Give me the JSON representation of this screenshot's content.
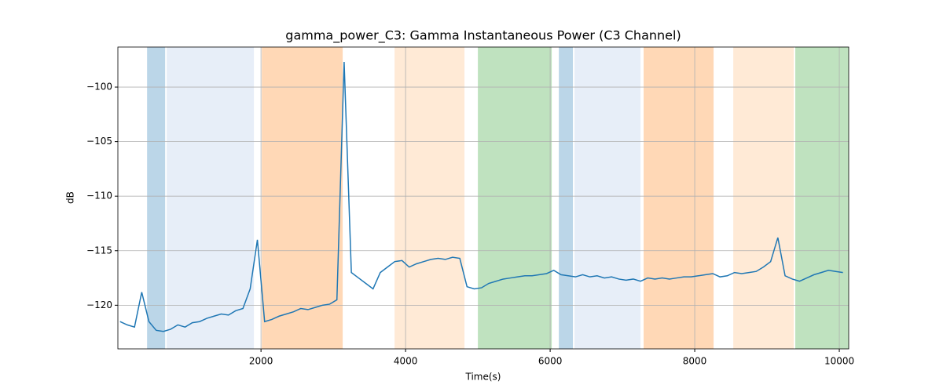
{
  "chart_data": {
    "type": "line",
    "title": "gamma_power_C3: Gamma Instantaneous Power (C3 Channel)",
    "xlabel": "Time(s)",
    "ylabel": "dB",
    "x": [
      50,
      150,
      250,
      350,
      450,
      550,
      650,
      750,
      850,
      950,
      1050,
      1150,
      1250,
      1350,
      1450,
      1550,
      1650,
      1750,
      1850,
      1950,
      2050,
      2150,
      2250,
      2350,
      2450,
      2550,
      2650,
      2750,
      2850,
      2950,
      3050,
      3150,
      3250,
      3350,
      3450,
      3550,
      3650,
      3750,
      3850,
      3950,
      4050,
      4150,
      4250,
      4350,
      4450,
      4550,
      4650,
      4750,
      4850,
      4950,
      5050,
      5150,
      5250,
      5350,
      5450,
      5550,
      5650,
      5750,
      5850,
      5950,
      6050,
      6150,
      6250,
      6350,
      6450,
      6550,
      6650,
      6750,
      6850,
      6950,
      7050,
      7150,
      7250,
      7350,
      7450,
      7550,
      7650,
      7750,
      7850,
      7950,
      8050,
      8150,
      8250,
      8350,
      8450,
      8550,
      8650,
      8750,
      8850,
      8950,
      9050,
      9150,
      9250,
      9350,
      9450,
      9550,
      9650,
      9750,
      9850,
      9950,
      10050
    ],
    "series": [
      {
        "name": "gamma_power_C3",
        "color": "#1f77b4",
        "values": [
          -121.5,
          -121.8,
          -122.0,
          -118.8,
          -121.5,
          -122.3,
          -122.4,
          -122.2,
          -121.8,
          -122.0,
          -121.6,
          -121.5,
          -121.2,
          -121.0,
          -120.8,
          -120.9,
          -120.5,
          -120.3,
          -118.5,
          -114.0,
          -121.5,
          -121.3,
          -121.0,
          -120.8,
          -120.6,
          -120.3,
          -120.4,
          -120.2,
          -120.0,
          -119.9,
          -119.5,
          -97.7,
          -117.0,
          -117.5,
          -118.0,
          -118.5,
          -117.0,
          -116.5,
          -116.0,
          -115.9,
          -116.5,
          -116.2,
          -116.0,
          -115.8,
          -115.7,
          -115.8,
          -115.6,
          -115.7,
          -118.3,
          -118.5,
          -118.4,
          -118.0,
          -117.8,
          -117.6,
          -117.5,
          -117.4,
          -117.3,
          -117.3,
          -117.2,
          -117.1,
          -116.8,
          -117.2,
          -117.3,
          -117.4,
          -117.2,
          -117.4,
          -117.3,
          -117.5,
          -117.4,
          -117.6,
          -117.7,
          -117.6,
          -117.8,
          -117.5,
          -117.6,
          -117.5,
          -117.6,
          -117.5,
          -117.4,
          -117.4,
          -117.3,
          -117.2,
          -117.1,
          -117.4,
          -117.3,
          -117.0,
          -117.1,
          -117.0,
          -116.9,
          -116.5,
          -116.0,
          -113.8,
          -117.3,
          -117.6,
          -117.8,
          -117.5,
          -117.2,
          -117.0,
          -116.8,
          -116.9,
          -117.0
        ]
      }
    ],
    "spans": [
      {
        "x": [
          424,
          674
        ],
        "color": "#1f77b4",
        "opacity": 0.3
      },
      {
        "x": [
          696,
          1902
        ],
        "color": "#aec7e8",
        "opacity": 0.3
      },
      {
        "x": [
          2011,
          3130
        ],
        "color": "#ff7f0e",
        "opacity": 0.3
      },
      {
        "x": [
          3848,
          4815
        ],
        "color": "#ffbb78",
        "opacity": 0.3
      },
      {
        "x": [
          5000,
          6022
        ],
        "color": "#2ca02c",
        "opacity": 0.3
      },
      {
        "x": [
          6120,
          6315
        ],
        "color": "#1f77b4",
        "opacity": 0.3
      },
      {
        "x": [
          6337,
          7250
        ],
        "color": "#aec7e8",
        "opacity": 0.3
      },
      {
        "x": [
          7293,
          8261
        ],
        "color": "#ff7f0e",
        "opacity": 0.3
      },
      {
        "x": [
          8533,
          9370
        ],
        "color": "#ffbb78",
        "opacity": 0.3
      },
      {
        "x": [
          9391,
          10130
        ],
        "color": "#2ca02c",
        "opacity": 0.3
      }
    ],
    "xlim": [
      20,
      10130
    ],
    "ylim": [
      -124.0,
      -96.33
    ],
    "xticks": [
      2000,
      4000,
      6000,
      8000,
      10000
    ],
    "yticks": [
      {
        "value": -120,
        "label": "−120"
      },
      {
        "value": -115,
        "label": "−115"
      },
      {
        "value": -110,
        "label": "−110"
      },
      {
        "value": -105,
        "label": "−105"
      },
      {
        "value": -100,
        "label": "−100"
      }
    ],
    "grid": true
  }
}
